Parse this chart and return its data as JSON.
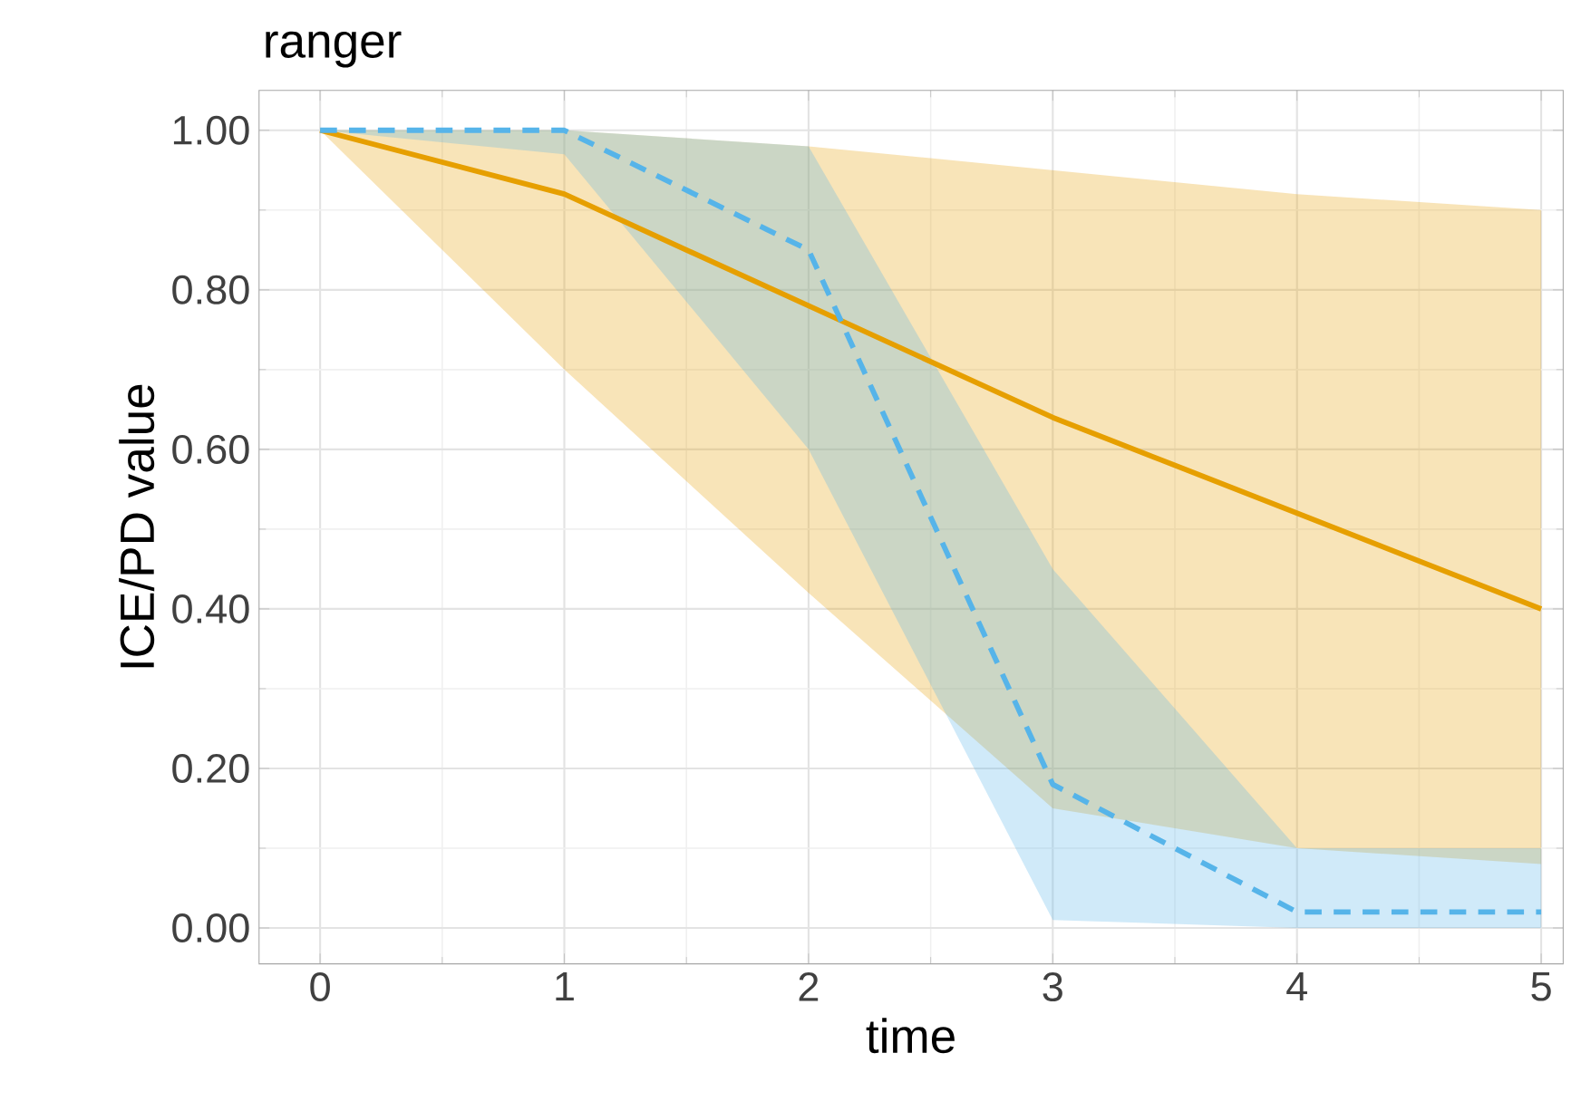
{
  "chart_data": {
    "type": "line",
    "title": "ranger",
    "xlabel": "time",
    "ylabel": "ICE/PD value",
    "x": [
      0,
      1,
      2,
      3,
      4,
      5
    ],
    "series": [
      {
        "color": "#e69f00",
        "line_style": "solid",
        "values": [
          1.0,
          0.92,
          0.78,
          0.64,
          0.52,
          0.4
        ],
        "lower": [
          1.0,
          0.7,
          0.42,
          0.15,
          0.1,
          0.08
        ],
        "upper": [
          1.0,
          1.0,
          0.98,
          0.95,
          0.92,
          0.9
        ]
      },
      {
        "color": "#56b4e9",
        "line_style": "dashed",
        "values": [
          1.0,
          1.0,
          0.85,
          0.18,
          0.02,
          0.02
        ],
        "lower": [
          1.0,
          0.97,
          0.6,
          0.01,
          0.0,
          0.0
        ],
        "upper": [
          1.0,
          1.0,
          0.98,
          0.45,
          0.1,
          0.1
        ]
      }
    ],
    "xlim": [
      -0.25,
      5.09
    ],
    "ylim": [
      -0.045,
      1.05
    ],
    "xticks": [
      0,
      1,
      2,
      3,
      4,
      5
    ],
    "yticks": [
      {
        "value": 0,
        "label": "0.00"
      },
      {
        "value": 0.2,
        "label": "0.20"
      },
      {
        "value": 0.4,
        "label": "0.40"
      },
      {
        "value": 0.6,
        "label": "0.60"
      },
      {
        "value": 0.8,
        "label": "0.80"
      },
      {
        "value": 1.0,
        "label": "1.00"
      }
    ],
    "grid": true,
    "marker": "none"
  }
}
